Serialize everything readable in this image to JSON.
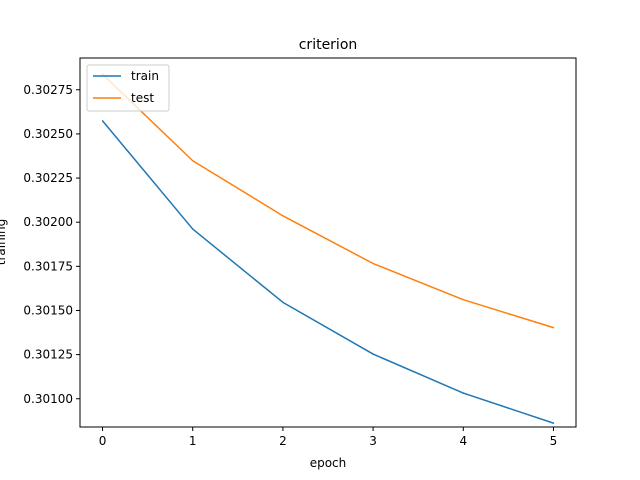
{
  "chart_data": {
    "type": "line",
    "title": "criterion",
    "xlabel": "epoch",
    "ylabel": "training",
    "x": [
      0,
      1,
      2,
      3,
      4,
      5
    ],
    "xlim": [
      -0.25,
      5.25
    ],
    "ylim": [
      0.30084,
      0.30293
    ],
    "xticks": [
      0,
      1,
      2,
      3,
      4,
      5
    ],
    "xtick_labels": [
      "0",
      "1",
      "2",
      "3",
      "4",
      "5"
    ],
    "yticks": [
      0.301,
      0.30125,
      0.3015,
      0.30175,
      0.302,
      0.30225,
      0.3025,
      0.30275
    ],
    "ytick_labels": [
      "0.30100",
      "0.30125",
      "0.30150",
      "0.30175",
      "0.30200",
      "0.30225",
      "0.30250",
      "0.30275"
    ],
    "grid": false,
    "legend_position": "top-left",
    "series": [
      {
        "name": "train",
        "color": "#1f77b4",
        "values": [
          0.302574,
          0.301961,
          0.301546,
          0.301253,
          0.301032,
          0.300862
        ]
      },
      {
        "name": "test",
        "color": "#ff7f0e",
        "values": [
          0.302838,
          0.302348,
          0.302036,
          0.301766,
          0.301561,
          0.301403
        ]
      }
    ]
  }
}
